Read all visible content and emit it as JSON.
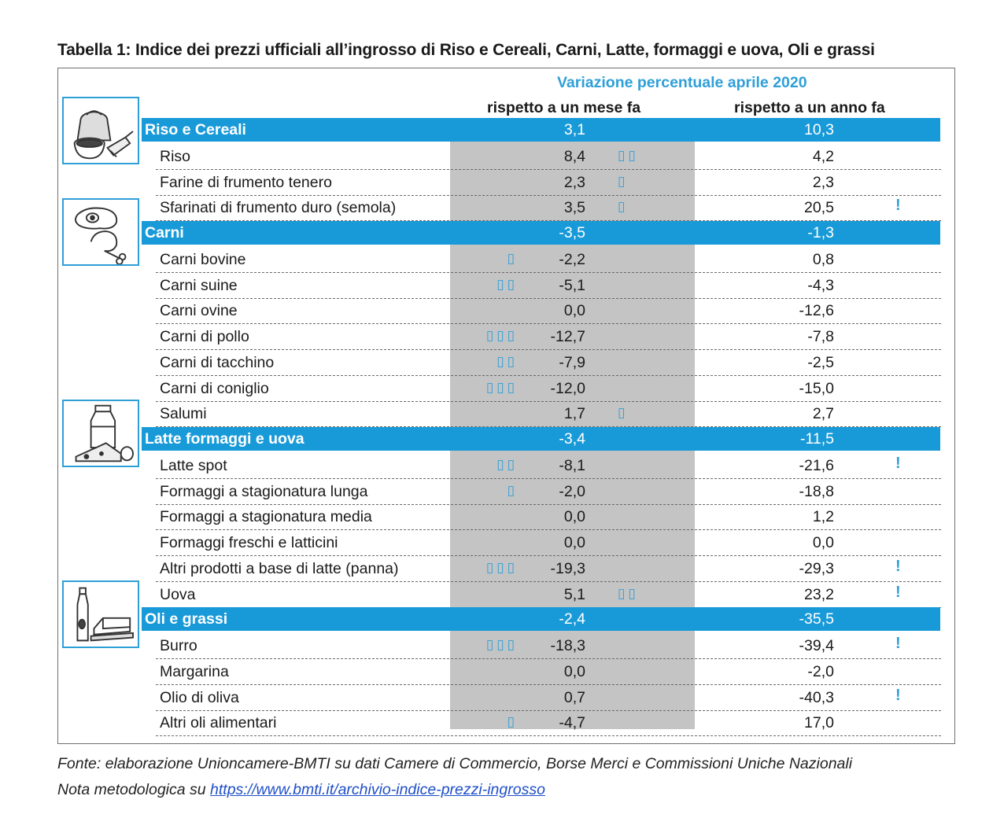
{
  "title": "Tabella 1: Indice dei prezzi ufficiali all’ingrosso di Riso e Cereali, Carni, Latte, formaggi e uova, Oli e grassi",
  "header": {
    "variation_title": "Variazione percentuale aprile 2020",
    "col_month": "rispetto a un mese fa",
    "col_year": "rispetto a un anno fa"
  },
  "rows": [
    {
      "type": "cat",
      "label": "Riso e Cereali",
      "m": "3,1",
      "y": "10,3",
      "icon": "grain-flour-icon"
    },
    {
      "type": "item",
      "label": "Riso",
      "m": "8,4",
      "y": "4,2",
      "trend": "up",
      "arrows": 2
    },
    {
      "type": "item",
      "label": "Farine di frumento tenero",
      "m": "2,3",
      "y": "2,3",
      "trend": "up",
      "arrows": 1
    },
    {
      "type": "item",
      "label": "Sfarinati di frumento duro (semola)",
      "m": "3,5",
      "y": "20,5",
      "trend": "up",
      "arrows": 1,
      "mark": "!"
    },
    {
      "type": "cat",
      "label": "Carni",
      "m": "-3,5",
      "y": "-1,3",
      "icon": "meat-icon"
    },
    {
      "type": "item",
      "label": "Carni bovine",
      "m": "-2,2",
      "y": "0,8",
      "trend": "down",
      "arrows": 1
    },
    {
      "type": "item",
      "label": "Carni suine",
      "m": "-5,1",
      "y": "-4,3",
      "trend": "down",
      "arrows": 2
    },
    {
      "type": "item",
      "label": "Carni ovine",
      "m": "0,0",
      "y": "-12,6"
    },
    {
      "type": "item",
      "label": "Carni di pollo",
      "m": "-12,7",
      "y": "-7,8",
      "trend": "down",
      "arrows": 3
    },
    {
      "type": "item",
      "label": "Carni di tacchino",
      "m": "-7,9",
      "y": "-2,5",
      "trend": "down",
      "arrows": 2
    },
    {
      "type": "item",
      "label": "Carni di coniglio",
      "m": "-12,0",
      "y": "-15,0",
      "trend": "down",
      "arrows": 3
    },
    {
      "type": "item",
      "label": "Salumi",
      "m": "1,7",
      "y": "2,7",
      "trend": "up",
      "arrows": 1
    },
    {
      "type": "cat",
      "label": "Latte formaggi e uova",
      "m": "-3,4",
      "y": "-11,5",
      "icon": "dairy-icon"
    },
    {
      "type": "item",
      "label": "Latte spot",
      "m": "-8,1",
      "y": "-21,6",
      "trend": "down",
      "arrows": 2,
      "mark": "!"
    },
    {
      "type": "item",
      "label": "Formaggi a stagionatura lunga",
      "m": "-2,0",
      "y": "-18,8",
      "trend": "down",
      "arrows": 1
    },
    {
      "type": "item",
      "label": "Formaggi a stagionatura media",
      "m": "0,0",
      "y": "1,2"
    },
    {
      "type": "item",
      "label": "Formaggi freschi e latticini",
      "m": "0,0",
      "y": "0,0"
    },
    {
      "type": "item",
      "label": "Altri prodotti a base di latte (panna)",
      "m": "-19,3",
      "y": "-29,3",
      "trend": "down",
      "arrows": 3,
      "mark": "!"
    },
    {
      "type": "item",
      "label": "Uova",
      "m": "5,1",
      "y": "23,2",
      "trend": "up",
      "arrows": 2,
      "mark": "!"
    },
    {
      "type": "cat",
      "label": "Oli e grassi",
      "m": "-2,4",
      "y": "-35,5",
      "icon": "oil-butter-icon"
    },
    {
      "type": "item",
      "label": "Burro",
      "m": "-18,3",
      "y": "-39,4",
      "trend": "down",
      "arrows": 3,
      "mark": "!"
    },
    {
      "type": "item",
      "label": "Margarina",
      "m": "0,0",
      "y": "-2,0"
    },
    {
      "type": "item",
      "label": "Olio di oliva",
      "m": "0,7",
      "y": "-40,3",
      "mark": "!"
    },
    {
      "type": "item",
      "label": "Altri oli alimentari",
      "m": "-4,7",
      "y": "17,0",
      "trend": "down",
      "arrows": 1
    }
  ],
  "footer": {
    "source": "Fonte: elaborazione Unioncamere-BMTI su dati Camere di Commercio, Borse Merci e Commissioni Uniche Nazionali",
    "note_prefix": "Nota metodologica su ",
    "note_link": "https://www.bmti.it/archivio-indice-prezzi-ingrosso"
  },
  "colors": {
    "accent": "#199ad8",
    "arrow": "#2f9fd8",
    "gray_column": "#c4c4c4"
  },
  "arrow_glyph": "▯"
}
